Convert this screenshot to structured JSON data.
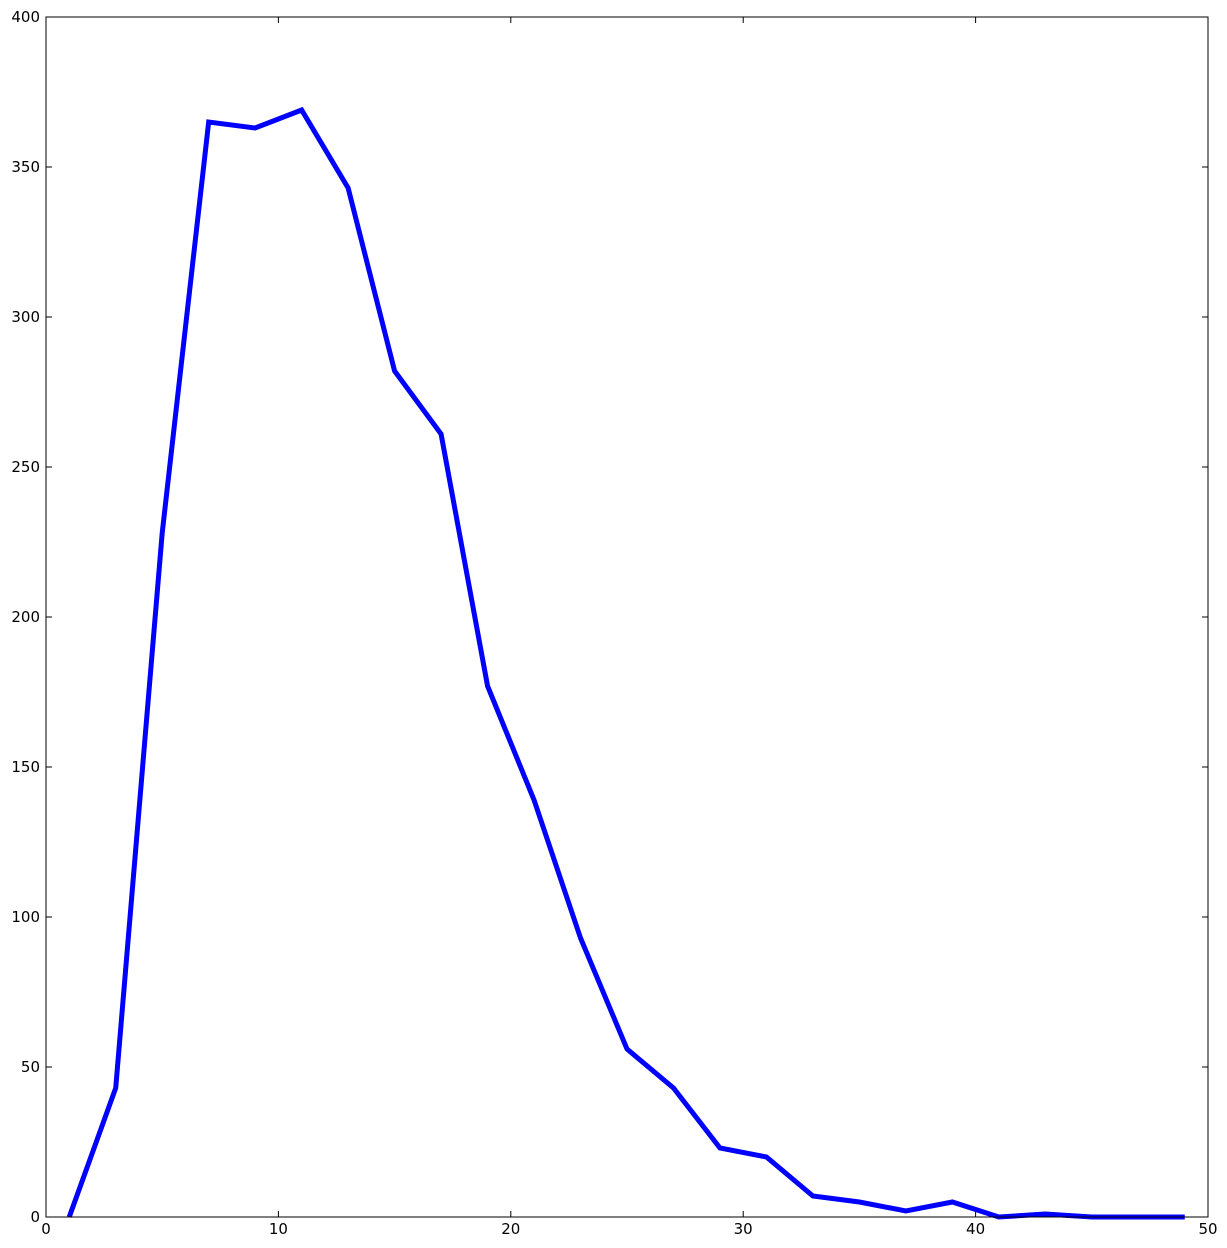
{
  "chart_data": {
    "type": "line",
    "title": "",
    "xlabel": "",
    "ylabel": "",
    "xlim": [
      0,
      50
    ],
    "ylim": [
      0,
      400
    ],
    "xticks": [
      0,
      10,
      20,
      30,
      40,
      50
    ],
    "yticks": [
      0,
      50,
      100,
      150,
      200,
      250,
      300,
      350,
      400
    ],
    "grid": false,
    "series": [
      {
        "color": "#0000ff",
        "x": [
          1,
          3,
          5,
          7,
          9,
          11,
          13,
          15,
          17,
          19,
          21,
          23,
          25,
          27,
          29,
          31,
          33,
          35,
          37,
          39,
          41,
          43,
          45,
          47,
          49
        ],
        "y": [
          0,
          43,
          228,
          365,
          363,
          369,
          343,
          282,
          261,
          177,
          139,
          93,
          56,
          43,
          23,
          20,
          7,
          5,
          2,
          5,
          0,
          1,
          0,
          0,
          0
        ]
      }
    ]
  }
}
